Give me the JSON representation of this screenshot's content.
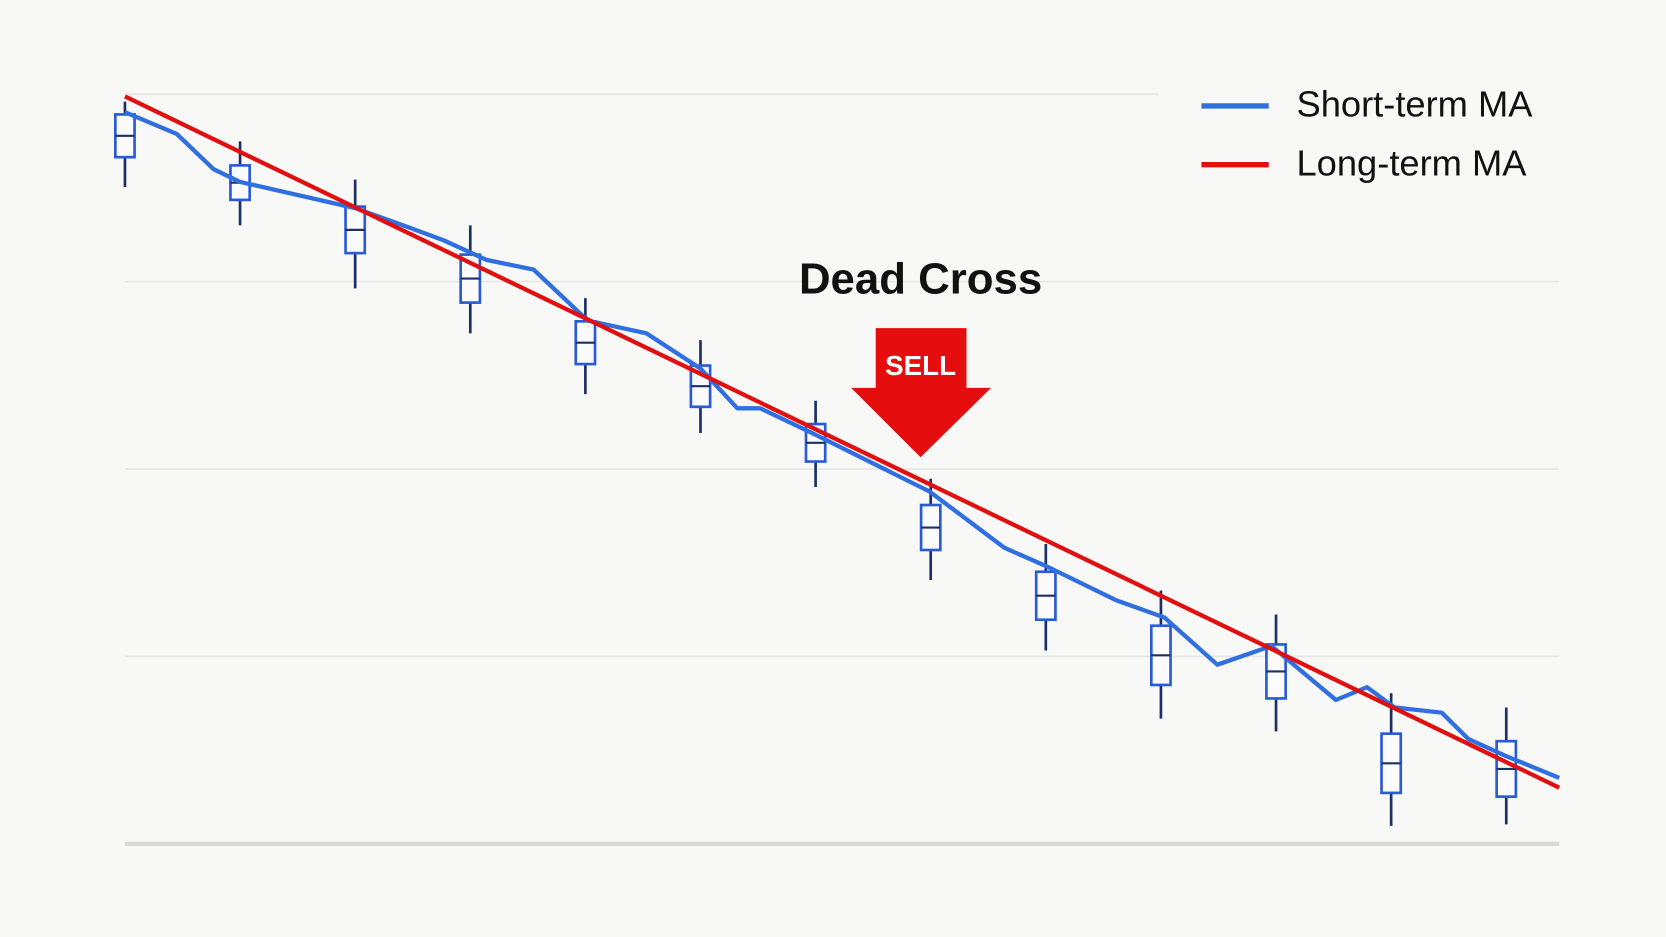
{
  "chart_data": {
    "type": "candlestick",
    "annotation": "Dead Cross",
    "signal": "SELL",
    "legend": "upper right",
    "grid": true,
    "ylim": [
      0,
      100
    ],
    "yticks": [
      0,
      25,
      50,
      75,
      100
    ],
    "xlim": [
      0,
      12.46
    ],
    "x": [
      0,
      1,
      2,
      3,
      4,
      5,
      6,
      7,
      8,
      9,
      10,
      11,
      12
    ],
    "open": [
      97.3,
      90.5,
      85.0,
      78.6,
      69.7,
      63.8,
      56.0,
      45.2,
      36.3,
      29.1,
      26.6,
      14.7,
      13.7
    ],
    "high": [
      99.0,
      93.7,
      88.6,
      82.5,
      72.8,
      67.2,
      59.1,
      48.7,
      40.0,
      33.8,
      30.6,
      20.1,
      18.2
    ],
    "low": [
      87.6,
      82.5,
      74.1,
      68.1,
      60.0,
      54.8,
      47.6,
      35.2,
      25.8,
      16.7,
      15.0,
      2.4,
      2.6
    ],
    "close": [
      91.6,
      85.9,
      78.8,
      72.2,
      64.0,
      58.3,
      51.0,
      39.2,
      29.9,
      21.2,
      19.4,
      6.8,
      6.3
    ],
    "candle_color": "#2a5bd7",
    "wick_color": "#1c2f66",
    "series": [
      {
        "name": "Short-term MA",
        "color": "#2f6fe0",
        "x": [
          0,
          0.45,
          0.77,
          1.0,
          2.0,
          2.4,
          2.77,
          3.14,
          3.55,
          4.02,
          4.53,
          5.0,
          5.32,
          5.52,
          5.97,
          6.99,
          7.64,
          8.01,
          8.61,
          9.03,
          9.49,
          9.96,
          10.52,
          10.79,
          11.03,
          11.44,
          11.67,
          12.0,
          12.46
        ],
        "values": [
          97.6,
          94.7,
          90.0,
          88.3,
          84.8,
          82.6,
          80.5,
          77.9,
          76.6,
          69.8,
          68.1,
          63.4,
          58.1,
          58.1,
          54.8,
          47.0,
          39.5,
          37.0,
          32.5,
          30.2,
          23.9,
          26.4,
          19.2,
          20.9,
          18.2,
          17.5,
          14.0,
          11.7,
          8.8
        ]
      },
      {
        "name": "Long-term MA",
        "color": "#e01010",
        "x": [
          0,
          12.46
        ],
        "values": [
          99.7,
          7.5
        ]
      }
    ]
  }
}
